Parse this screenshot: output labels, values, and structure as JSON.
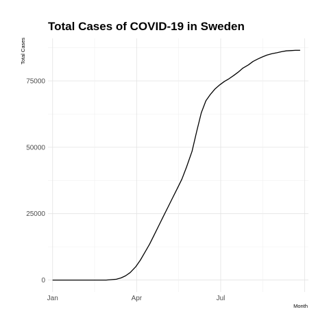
{
  "chart_data": {
    "type": "line",
    "title": "Total Cases of COVID-19 in Sweden",
    "xlabel": "Month",
    "ylabel": "Total Cases",
    "x_ticks": [
      {
        "label": "Jan",
        "date": "2020-01-01"
      },
      {
        "label": "Apr",
        "date": "2020-04-01"
      },
      {
        "label": "Jul",
        "date": "2020-07-01"
      }
    ],
    "y_ticks": [
      0,
      25000,
      50000,
      75000
    ],
    "xlim": [
      "2019-12-27",
      "2020-10-04"
    ],
    "ylim": [
      -4500,
      91000
    ],
    "grid": true,
    "legend": "none",
    "series": [
      {
        "color": "#000000",
        "x": [
          "2020-01-01",
          "2020-01-20",
          "2020-02-10",
          "2020-02-28",
          "2020-03-10",
          "2020-03-15",
          "2020-03-20",
          "2020-03-25",
          "2020-03-31",
          "2020-04-05",
          "2020-04-10",
          "2020-04-15",
          "2020-04-20",
          "2020-04-25",
          "2020-04-30",
          "2020-05-05",
          "2020-05-10",
          "2020-05-15",
          "2020-05-20",
          "2020-05-25",
          "2020-05-31",
          "2020-06-05",
          "2020-06-10",
          "2020-06-15",
          "2020-06-20",
          "2020-06-25",
          "2020-06-30",
          "2020-07-05",
          "2020-07-10",
          "2020-07-15",
          "2020-07-20",
          "2020-07-25",
          "2020-07-31",
          "2020-08-05",
          "2020-08-10",
          "2020-08-15",
          "2020-08-20",
          "2020-08-25",
          "2020-08-31",
          "2020-09-05",
          "2020-09-10",
          "2020-09-15",
          "2020-09-20",
          "2020-09-25"
        ],
        "y": [
          0,
          0,
          0,
          0,
          300,
          800,
          1600,
          2800,
          5000,
          7500,
          10500,
          13500,
          17000,
          20500,
          24000,
          27500,
          31000,
          34500,
          38000,
          42500,
          48500,
          56000,
          63000,
          67500,
          70000,
          72000,
          73500,
          74800,
          75800,
          77000,
          78300,
          79800,
          81000,
          82300,
          83200,
          84000,
          84700,
          85200,
          85600,
          86000,
          86300,
          86400,
          86500,
          86500
        ]
      }
    ]
  }
}
